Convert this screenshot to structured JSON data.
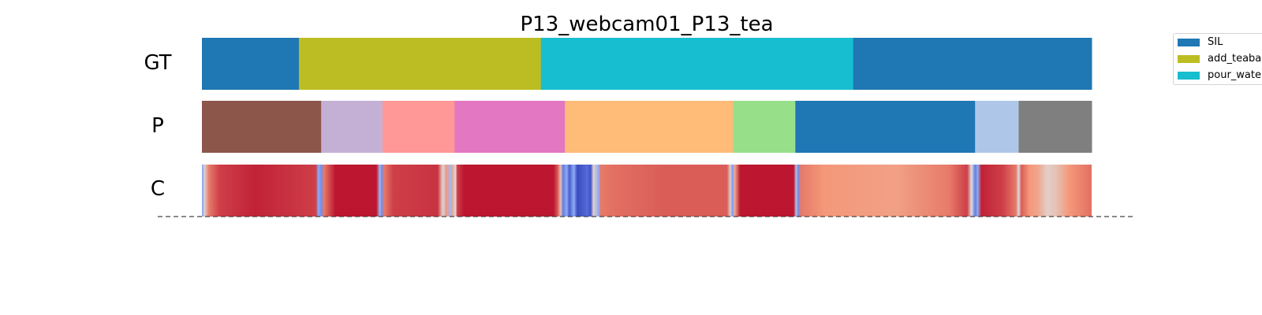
{
  "chart_data": {
    "type": "segmentation",
    "title": "P13_webcam01_P13_tea",
    "x_range": [
      0,
      1000
    ],
    "rows": [
      {
        "label": "GT",
        "segments": [
          {
            "start": 0,
            "end": 109,
            "color": "#1f77b4"
          },
          {
            "start": 109,
            "end": 381,
            "color": "#bcbd22"
          },
          {
            "start": 381,
            "end": 732,
            "color": "#17becf"
          },
          {
            "start": 732,
            "end": 1000,
            "color": "#1f77b4"
          }
        ]
      },
      {
        "label": "P",
        "segments": [
          {
            "start": 0,
            "end": 134,
            "color": "#8c564b"
          },
          {
            "start": 134,
            "end": 203,
            "color": "#c5b0d5"
          },
          {
            "start": 203,
            "end": 284,
            "color": "#ff9896"
          },
          {
            "start": 284,
            "end": 408,
            "color": "#e377c2"
          },
          {
            "start": 408,
            "end": 597,
            "color": "#ffbb78"
          },
          {
            "start": 597,
            "end": 667,
            "color": "#98df8a"
          },
          {
            "start": 667,
            "end": 869,
            "color": "#1f77b4"
          },
          {
            "start": 869,
            "end": 918,
            "color": "#aec7e8"
          },
          {
            "start": 918,
            "end": 1000,
            "color": "#7f7f7f"
          }
        ]
      },
      {
        "label": "C",
        "confidence_stops": [
          [
            0,
            0.25
          ],
          [
            3,
            0.55
          ],
          [
            8,
            0.8
          ],
          [
            20,
            0.9
          ],
          [
            60,
            0.95
          ],
          [
            128,
            0.9
          ],
          [
            131,
            0.3
          ],
          [
            134,
            0.2
          ],
          [
            137,
            0.8
          ],
          [
            150,
            0.97
          ],
          [
            196,
            0.97
          ],
          [
            200,
            0.35
          ],
          [
            202,
            0.2
          ],
          [
            205,
            0.8
          ],
          [
            215,
            0.9
          ],
          [
            265,
            0.92
          ],
          [
            270,
            0.6
          ],
          [
            272,
            0.45
          ],
          [
            274,
            0.75
          ],
          [
            280,
            0.35
          ],
          [
            282,
            0.7
          ],
          [
            285,
            0.5
          ],
          [
            287,
            0.9
          ],
          [
            295,
            0.97
          ],
          [
            395,
            0.97
          ],
          [
            400,
            0.85
          ],
          [
            403,
            0.6
          ],
          [
            406,
            0.15
          ],
          [
            410,
            0.3
          ],
          [
            413,
            0.05
          ],
          [
            418,
            0.3
          ],
          [
            422,
            0.0
          ],
          [
            428,
            0.05
          ],
          [
            433,
            0.1
          ],
          [
            437,
            0.02
          ],
          [
            440,
            0.55
          ],
          [
            446,
            0.3
          ],
          [
            448,
            0.8
          ],
          [
            465,
            0.82
          ],
          [
            520,
            0.85
          ],
          [
            590,
            0.85
          ],
          [
            594,
            0.55
          ],
          [
            596,
            0.25
          ],
          [
            599,
            0.7
          ],
          [
            605,
            0.97
          ],
          [
            665,
            0.97
          ],
          [
            668,
            0.4
          ],
          [
            670,
            0.2
          ],
          [
            673,
            0.8
          ],
          [
            700,
            0.75
          ],
          [
            780,
            0.72
          ],
          [
            840,
            0.8
          ],
          [
            860,
            0.9
          ],
          [
            865,
            0.5
          ],
          [
            869,
            0.15
          ],
          [
            872,
            0.3
          ],
          [
            876,
            0.95
          ],
          [
            900,
            0.9
          ],
          [
            915,
            0.8
          ],
          [
            918,
            0.5
          ],
          [
            921,
            0.85
          ],
          [
            930,
            0.75
          ],
          [
            940,
            0.7
          ],
          [
            950,
            0.55
          ],
          [
            960,
            0.6
          ],
          [
            975,
            0.75
          ],
          [
            1000,
            0.82
          ]
        ]
      }
    ],
    "legend": [
      {
        "label": "SIL",
        "color": "#1f77b4"
      },
      {
        "label": "add_teabag",
        "color": "#bcbd22"
      },
      {
        "label": "pour_water",
        "color": "#17becf"
      }
    ],
    "legend_position": "upper-right outside"
  }
}
